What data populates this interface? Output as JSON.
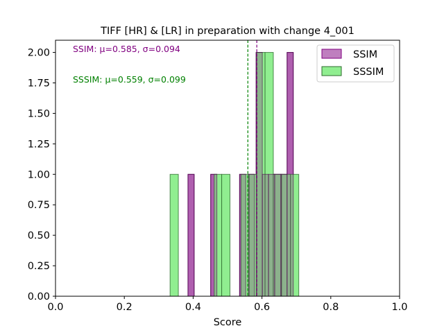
{
  "chart_data": {
    "type": "histogram",
    "title": "TIFF [HR] & [LR] in preparation with change 4_001",
    "xlabel": "Score",
    "ylabel": "",
    "xlim": [
      0.0,
      1.0
    ],
    "ylim": [
      0.0,
      2.1
    ],
    "x_ticks": [
      "0.0",
      "0.2",
      "0.4",
      "0.6",
      "0.8",
      "1.0"
    ],
    "y_ticks": [
      "0.00",
      "0.25",
      "0.50",
      "0.75",
      "1.00",
      "1.25",
      "1.50",
      "1.75",
      "2.00"
    ],
    "grid": false,
    "legend_position": "top-right",
    "series": [
      {
        "name": "SSIM",
        "color": "#800080",
        "mean": 0.585,
        "annotation": "SSIM: μ=0.585, σ=0.094",
        "bins": [
          {
            "x0": 0.385,
            "x1": 0.403,
            "count": 1
          },
          {
            "x0": 0.451,
            "x1": 0.469,
            "count": 1
          },
          {
            "x0": 0.535,
            "x1": 0.553,
            "count": 1
          },
          {
            "x0": 0.56,
            "x1": 0.578,
            "count": 1
          },
          {
            "x0": 0.583,
            "x1": 0.601,
            "count": 2
          },
          {
            "x0": 0.601,
            "x1": 0.619,
            "count": 1
          },
          {
            "x0": 0.619,
            "x1": 0.637,
            "count": 1
          },
          {
            "x0": 0.637,
            "x1": 0.655,
            "count": 1
          },
          {
            "x0": 0.655,
            "x1": 0.673,
            "count": 1
          },
          {
            "x0": 0.673,
            "x1": 0.691,
            "count": 2
          }
        ]
      },
      {
        "name": "SSSIM",
        "color": "#90EE90",
        "mean": 0.559,
        "annotation": "SSSIM: μ=0.559, σ=0.099",
        "bins": [
          {
            "x0": 0.333,
            "x1": 0.357,
            "count": 1
          },
          {
            "x0": 0.461,
            "x1": 0.483,
            "count": 1
          },
          {
            "x0": 0.483,
            "x1": 0.507,
            "count": 1
          },
          {
            "x0": 0.539,
            "x1": 0.563,
            "count": 1
          },
          {
            "x0": 0.563,
            "x1": 0.585,
            "count": 1
          },
          {
            "x0": 0.585,
            "x1": 0.609,
            "count": 2
          },
          {
            "x0": 0.609,
            "x1": 0.633,
            "count": 2
          },
          {
            "x0": 0.633,
            "x1": 0.657,
            "count": 1
          },
          {
            "x0": 0.657,
            "x1": 0.683,
            "count": 1
          },
          {
            "x0": 0.683,
            "x1": 0.707,
            "count": 1
          }
        ]
      }
    ]
  }
}
